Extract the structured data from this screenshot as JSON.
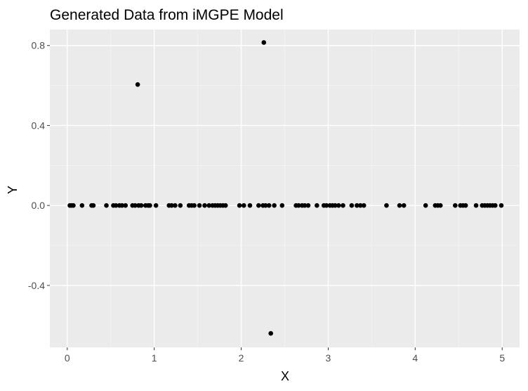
{
  "chart_data": {
    "type": "scatter",
    "title": "Generated Data from iMGPE Model",
    "xlabel": "X",
    "ylabel": "Y",
    "xlim": [
      -0.2,
      5.2
    ],
    "ylim": [
      -0.71,
      0.88
    ],
    "x_ticks": [
      0,
      1,
      2,
      3,
      4,
      5
    ],
    "x_tick_labels": [
      "0",
      "1",
      "2",
      "3",
      "4",
      "5"
    ],
    "y_ticks": [
      -0.4,
      0.0,
      0.4,
      0.8
    ],
    "y_tick_labels": [
      "-0.4",
      "0.0",
      "0.4",
      "0.8"
    ],
    "grid": true,
    "legend": "none",
    "colors": {
      "panel_background": "#ebebeb",
      "grid_major": "#ffffff",
      "grid_minor": "#f5f5f5",
      "point": "#000000",
      "tick_label": "#4d4d4d"
    },
    "points": [
      {
        "x": 0.03,
        "y": 0.0
      },
      {
        "x": 0.05,
        "y": 0.0
      },
      {
        "x": 0.07,
        "y": 0.0
      },
      {
        "x": 0.17,
        "y": 0.0
      },
      {
        "x": 0.28,
        "y": 0.0
      },
      {
        "x": 0.3,
        "y": 0.0
      },
      {
        "x": 0.45,
        "y": 0.0
      },
      {
        "x": 0.53,
        "y": 0.0
      },
      {
        "x": 0.56,
        "y": 0.0
      },
      {
        "x": 0.6,
        "y": 0.0
      },
      {
        "x": 0.63,
        "y": 0.0
      },
      {
        "x": 0.67,
        "y": 0.0
      },
      {
        "x": 0.75,
        "y": 0.0
      },
      {
        "x": 0.78,
        "y": 0.0
      },
      {
        "x": 0.82,
        "y": 0.0
      },
      {
        "x": 0.85,
        "y": 0.0
      },
      {
        "x": 0.9,
        "y": 0.0
      },
      {
        "x": 0.93,
        "y": 0.0
      },
      {
        "x": 0.95,
        "y": 0.0
      },
      {
        "x": 1.02,
        "y": 0.0
      },
      {
        "x": 1.17,
        "y": 0.0
      },
      {
        "x": 1.2,
        "y": 0.0
      },
      {
        "x": 1.24,
        "y": 0.0
      },
      {
        "x": 1.3,
        "y": 0.0
      },
      {
        "x": 1.4,
        "y": 0.0
      },
      {
        "x": 1.43,
        "y": 0.0
      },
      {
        "x": 1.46,
        "y": 0.0
      },
      {
        "x": 1.52,
        "y": 0.0
      },
      {
        "x": 1.58,
        "y": 0.0
      },
      {
        "x": 1.63,
        "y": 0.0
      },
      {
        "x": 1.67,
        "y": 0.0
      },
      {
        "x": 1.7,
        "y": 0.0
      },
      {
        "x": 1.73,
        "y": 0.0
      },
      {
        "x": 1.76,
        "y": 0.0
      },
      {
        "x": 1.79,
        "y": 0.0
      },
      {
        "x": 1.82,
        "y": 0.0
      },
      {
        "x": 1.98,
        "y": 0.0
      },
      {
        "x": 2.03,
        "y": 0.0
      },
      {
        "x": 2.1,
        "y": 0.0
      },
      {
        "x": 2.2,
        "y": 0.0
      },
      {
        "x": 2.25,
        "y": 0.0
      },
      {
        "x": 2.28,
        "y": 0.0
      },
      {
        "x": 2.32,
        "y": 0.0
      },
      {
        "x": 2.38,
        "y": 0.0
      },
      {
        "x": 2.47,
        "y": 0.0
      },
      {
        "x": 2.63,
        "y": 0.0
      },
      {
        "x": 2.66,
        "y": 0.0
      },
      {
        "x": 2.7,
        "y": 0.0
      },
      {
        "x": 2.73,
        "y": 0.0
      },
      {
        "x": 2.77,
        "y": 0.0
      },
      {
        "x": 2.87,
        "y": 0.0
      },
      {
        "x": 2.95,
        "y": 0.0
      },
      {
        "x": 2.98,
        "y": 0.0
      },
      {
        "x": 3.02,
        "y": 0.0
      },
      {
        "x": 3.05,
        "y": 0.0
      },
      {
        "x": 3.08,
        "y": 0.0
      },
      {
        "x": 3.12,
        "y": 0.0
      },
      {
        "x": 3.17,
        "y": 0.0
      },
      {
        "x": 3.27,
        "y": 0.0
      },
      {
        "x": 3.33,
        "y": 0.0
      },
      {
        "x": 3.37,
        "y": 0.0
      },
      {
        "x": 3.41,
        "y": 0.0
      },
      {
        "x": 3.67,
        "y": 0.0
      },
      {
        "x": 3.82,
        "y": 0.0
      },
      {
        "x": 3.87,
        "y": 0.0
      },
      {
        "x": 4.12,
        "y": 0.0
      },
      {
        "x": 4.23,
        "y": 0.0
      },
      {
        "x": 4.26,
        "y": 0.0
      },
      {
        "x": 4.29,
        "y": 0.0
      },
      {
        "x": 4.46,
        "y": 0.0
      },
      {
        "x": 4.52,
        "y": 0.0
      },
      {
        "x": 4.55,
        "y": 0.0
      },
      {
        "x": 4.58,
        "y": 0.0
      },
      {
        "x": 4.7,
        "y": 0.0
      },
      {
        "x": 4.77,
        "y": 0.0
      },
      {
        "x": 4.8,
        "y": 0.0
      },
      {
        "x": 4.83,
        "y": 0.0
      },
      {
        "x": 4.86,
        "y": 0.0
      },
      {
        "x": 4.89,
        "y": 0.0
      },
      {
        "x": 4.92,
        "y": 0.0
      },
      {
        "x": 4.99,
        "y": 0.0
      },
      {
        "x": 0.81,
        "y": 0.605
      },
      {
        "x": 2.26,
        "y": 0.815
      },
      {
        "x": 2.34,
        "y": -0.64
      }
    ]
  }
}
